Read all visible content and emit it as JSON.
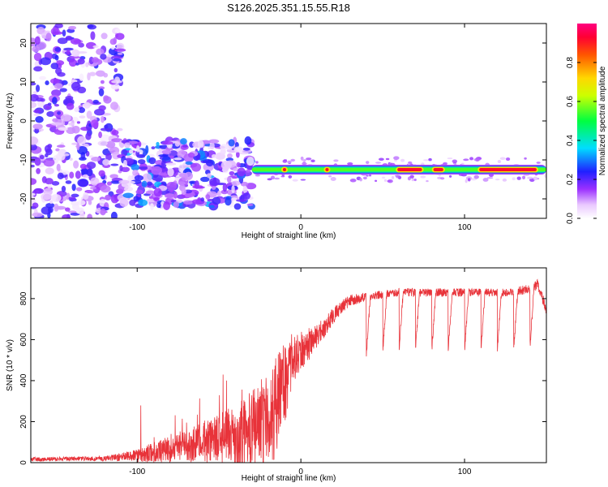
{
  "title": "S126.2025.351.15.55.R18",
  "chart_data": [
    {
      "type": "heatmap",
      "xlabel": "Height of straight line (km)",
      "ylabel": "Frequency (Hz)",
      "xlim": [
        -165,
        150
      ],
      "ylim": [
        -25,
        25
      ],
      "x_ticks": [
        "-100",
        "0",
        "100"
      ],
      "y_ticks": [
        "20",
        "10",
        "0",
        "-10",
        "-20"
      ],
      "x_tick_values": [
        -100,
        0,
        100
      ],
      "y_tick_values": [
        20,
        10,
        0,
        -10,
        -20
      ],
      "colorbar": {
        "label": "Normalized spectral amplitude",
        "ticks": [
          "0.0",
          "0.2",
          "0.4",
          "0.6",
          "0.8"
        ],
        "tick_values": [
          0.0,
          0.2,
          0.4,
          0.6,
          0.8
        ],
        "range": [
          0,
          1
        ]
      },
      "signal_line": {
        "frequency_hz": -12.5,
        "x_start": -30,
        "x_end": 150,
        "peak_regions": [
          [
            -12,
            -8
          ],
          [
            14,
            18
          ],
          [
            58,
            75
          ],
          [
            80,
            88
          ],
          [
            108,
            145
          ]
        ]
      },
      "noise_regions": [
        {
          "x_range": [
            -165,
            -110
          ],
          "y_range": [
            -25,
            25
          ],
          "level": 0.12
        },
        {
          "x_range": [
            -110,
            -30
          ],
          "y_range": [
            -22,
            -5
          ],
          "level": 0.18
        }
      ]
    },
    {
      "type": "line",
      "xlabel": "Height of straight line (km)",
      "ylabel": "SNR (10 * v/v)",
      "xlim": [
        -165,
        150
      ],
      "ylim": [
        0,
        950
      ],
      "x_ticks": [
        "-100",
        "0",
        "100"
      ],
      "y_ticks": [
        "0",
        "200",
        "400",
        "600",
        "800"
      ],
      "x_tick_values": [
        -100,
        0,
        100
      ],
      "y_tick_values": [
        0,
        200,
        400,
        600,
        800
      ],
      "color": "#e8333a",
      "series": [
        {
          "x": [
            -165,
            -140,
            -120,
            -100,
            -90,
            -80,
            -70,
            -60,
            -50,
            -40,
            -30,
            -20,
            -15,
            -10,
            -5,
            0,
            5,
            10,
            15,
            20,
            25,
            30,
            40,
            50,
            60,
            70,
            80,
            90,
            100,
            110,
            120,
            130,
            140,
            145,
            150
          ],
          "values": [
            15,
            20,
            20,
            35,
            50,
            70,
            80,
            100,
            120,
            130,
            150,
            200,
            280,
            380,
            500,
            540,
            580,
            620,
            660,
            720,
            760,
            790,
            810,
            820,
            830,
            830,
            830,
            830,
            830,
            830,
            830,
            830,
            850,
            870,
            740
          ],
          "noise": [
            10,
            10,
            12,
            30,
            50,
            70,
            80,
            100,
            120,
            150,
            200,
            250,
            250,
            200,
            120,
            100,
            80,
            60,
            50,
            40,
            30,
            30,
            20,
            20,
            20,
            20,
            20,
            20,
            20,
            20,
            20,
            20,
            25,
            30,
            20
          ]
        }
      ],
      "dips_x": [
        40,
        50,
        60,
        70,
        80,
        90,
        100,
        110,
        120,
        130,
        140
      ]
    }
  ]
}
